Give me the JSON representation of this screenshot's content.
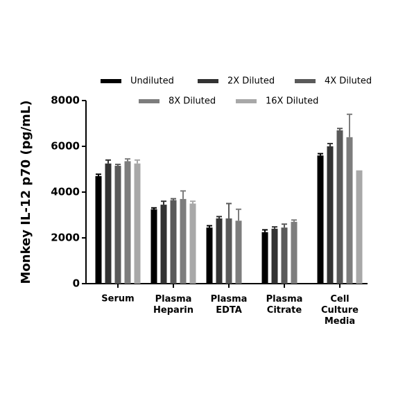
{
  "chart_data": {
    "type": "bar",
    "y_label": "Monkey IL-12 p70 (pg/mL)",
    "categories": [
      "Serum",
      "Plasma Heparin",
      "Plasma EDTA",
      "Plasma Citrate",
      "Cell Culture Media"
    ],
    "series": [
      {
        "name": "Undiluted",
        "color": "#000000",
        "values": [
          4700,
          3250,
          2450,
          2250,
          5600
        ],
        "errors": [
          80,
          60,
          80,
          100,
          80
        ]
      },
      {
        "name": "2X Diluted",
        "color": "#333333",
        "values": [
          5250,
          3450,
          2850,
          2400,
          6000
        ],
        "errors": [
          150,
          150,
          80,
          80,
          120
        ]
      },
      {
        "name": "4X Diluted",
        "color": "#5a5a5a",
        "values": [
          5150,
          3650,
          2850,
          2450,
          6700
        ],
        "errors": [
          60,
          60,
          650,
          150,
          80
        ]
      },
      {
        "name": "8X Diluted",
        "color": "#7d7d7d",
        "values": [
          5350,
          3700,
          2750,
          2700,
          6400
        ],
        "errors": [
          100,
          350,
          500,
          80,
          1000
        ]
      },
      {
        "name": "16X Diluted",
        "color": "#a8a8a8",
        "values": [
          5250,
          3500,
          null,
          null,
          4950
        ],
        "errors": [
          150,
          100,
          null,
          null,
          null
        ]
      }
    ],
    "ylim": [
      0,
      8000
    ],
    "yticks": [
      0,
      2000,
      4000,
      6000,
      8000
    ]
  }
}
